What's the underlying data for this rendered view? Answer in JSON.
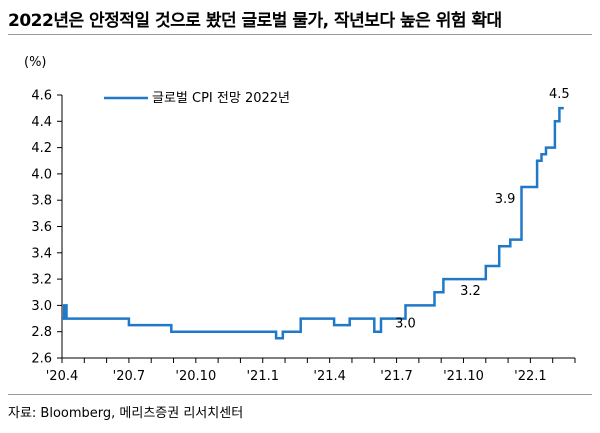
{
  "title": "2022년은 안정적일 것으로 봤던 글로벌 물가, 작년보다 높은 위험 확대",
  "source": "자료: Bloomberg, 메리츠증권 리서치센터",
  "colors": {
    "line": "#1f78c8",
    "axis": "#000000",
    "rule": "#9a9a9a"
  },
  "chart_data": {
    "type": "line",
    "unit_label": "(%)",
    "ylim": [
      2.6,
      4.6
    ],
    "yticks": [
      "2.6",
      "2.8",
      "3.0",
      "3.2",
      "3.4",
      "3.6",
      "3.8",
      "4.0",
      "4.2",
      "4.4",
      "4.6"
    ],
    "xticks": [
      "'20.4",
      "'20.7",
      "'20.10",
      "'21.1",
      "'21.4",
      "'21.7",
      "'21.10",
      "'22.1"
    ],
    "grid": false,
    "legend_position": "top-left",
    "series": [
      {
        "name": "글로벌 CPI 전망 2022년",
        "step": true,
        "x": [
          0,
          0.1,
          0.2,
          2.0,
          3.0,
          3.1,
          4.9,
          5.5,
          5.8,
          6.1,
          6.2,
          6.4,
          7.3,
          8.0,
          8.3,
          8.8,
          9.6,
          9.9,
          10.7,
          11.1,
          12.2,
          12.9,
          14.0,
          14.3,
          15.4,
          15.6,
          16.7,
          17.1,
          17.4,
          19.0,
          19.2,
          19.6,
          20.1,
          20.6,
          21.0,
          21.3,
          21.5,
          21.7,
          22.1,
          22.3,
          22.5
        ],
        "y": [
          2.9,
          3.0,
          2.9,
          2.9,
          2.85,
          2.85,
          2.8,
          2.8,
          2.8,
          2.8,
          2.8,
          2.8,
          2.8,
          2.8,
          2.8,
          2.8,
          2.75,
          2.8,
          2.9,
          2.9,
          2.85,
          2.9,
          2.8,
          2.9,
          3.0,
          3.0,
          3.1,
          3.2,
          3.2,
          3.3,
          3.3,
          3.45,
          3.5,
          3.9,
          3.9,
          4.1,
          4.15,
          4.2,
          4.4,
          4.5,
          4.5
        ]
      }
    ],
    "annotations": [
      {
        "text": "4.5",
        "x": 22.3,
        "y": 4.5
      },
      {
        "text": "3.9",
        "x": 20.6,
        "y": 3.9
      },
      {
        "text": "3.2",
        "x": 17.4,
        "y": 3.2
      },
      {
        "text": "3.0",
        "x": 15.4,
        "y": 3.0
      }
    ]
  }
}
